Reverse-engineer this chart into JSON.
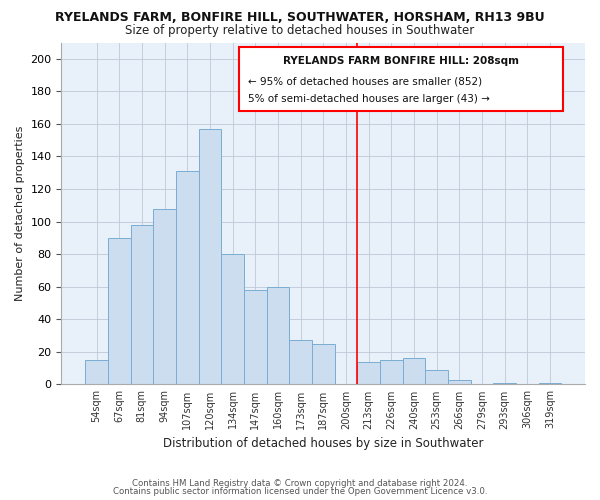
{
  "title": "RYELANDS FARM, BONFIRE HILL, SOUTHWATER, HORSHAM, RH13 9BU",
  "subtitle": "Size of property relative to detached houses in Southwater",
  "xlabel": "Distribution of detached houses by size in Southwater",
  "ylabel": "Number of detached properties",
  "bar_labels": [
    "54sqm",
    "67sqm",
    "81sqm",
    "94sqm",
    "107sqm",
    "120sqm",
    "134sqm",
    "147sqm",
    "160sqm",
    "173sqm",
    "187sqm",
    "200sqm",
    "213sqm",
    "226sqm",
    "240sqm",
    "253sqm",
    "266sqm",
    "279sqm",
    "293sqm",
    "306sqm",
    "319sqm"
  ],
  "bar_values": [
    15,
    90,
    98,
    108,
    131,
    157,
    80,
    58,
    60,
    27,
    25,
    0,
    14,
    15,
    16,
    9,
    3,
    0,
    1,
    0,
    1
  ],
  "bar_color": "#ccddf0",
  "bar_edge_color": "#7aadd4",
  "vline_color": "red",
  "annotation_title": "RYELANDS FARM BONFIRE HILL: 208sqm",
  "annotation_line1": "← 95% of detached houses are smaller (852)",
  "annotation_line2": "5% of semi-detached houses are larger (43) →",
  "footer1": "Contains HM Land Registry data © Crown copyright and database right 2024.",
  "footer2": "Contains public sector information licensed under the Open Government Licence v3.0.",
  "ylim": [
    0,
    210
  ],
  "yticks": [
    0,
    20,
    40,
    60,
    80,
    100,
    120,
    140,
    160,
    180,
    200
  ],
  "bg_color": "#ffffff",
  "plot_bg_color": "#e8f0fa",
  "grid_color": "#c0c8d8"
}
